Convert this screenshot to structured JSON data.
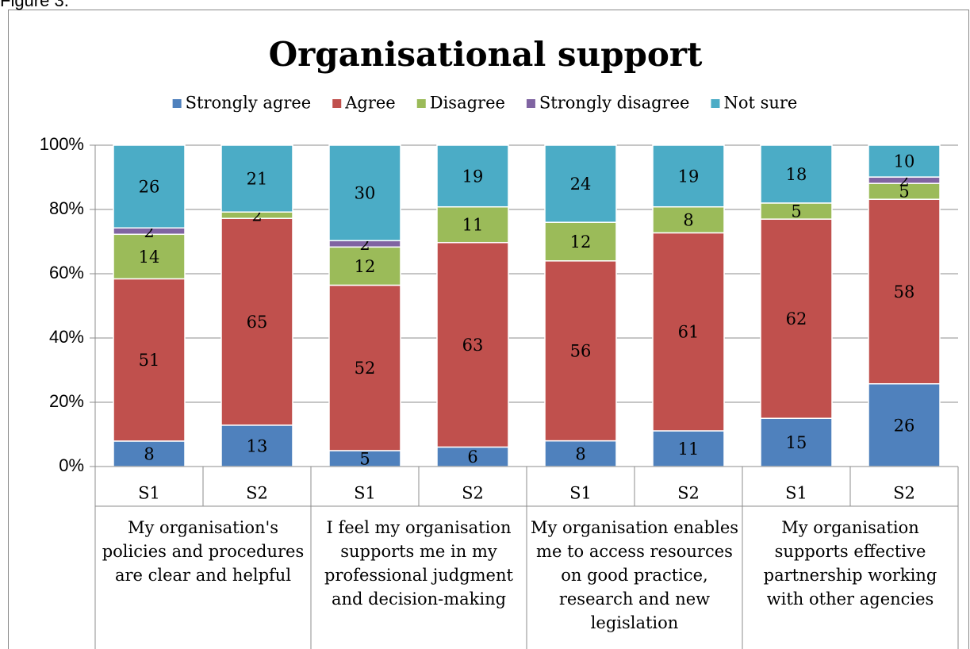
{
  "caption": "Figure 3.",
  "chart_data": {
    "type": "bar",
    "stack": "percent",
    "title": "Organisational support",
    "categories": [
      "S1",
      "S2",
      "S1",
      "S2",
      "S1",
      "S2",
      "S1",
      "S2"
    ],
    "groups": [
      "My organisation's policies and procedures are clear and helpful",
      "I feel my organisation supports me in my professional judgment and decision-making",
      "My organisation enables me to access resources on good practice, research and new legislation",
      "My organisation supports effective partnership working with other agencies"
    ],
    "series": [
      {
        "name": "Strongly agree",
        "color": "#4f81bd",
        "values": [
          8,
          13,
          5,
          6,
          8,
          11,
          15,
          26
        ]
      },
      {
        "name": "Agree",
        "color": "#c0504d",
        "values": [
          51,
          65,
          52,
          63,
          56,
          61,
          62,
          58
        ]
      },
      {
        "name": "Disagree",
        "color": "#9bbb59",
        "values": [
          14,
          2,
          12,
          11,
          12,
          8,
          5,
          5
        ]
      },
      {
        "name": "Strongly disagree",
        "color": "#8064a2",
        "values": [
          2,
          null,
          2,
          null,
          null,
          null,
          null,
          2
        ]
      },
      {
        "name": "Not sure",
        "color": "#4bacc6",
        "values": [
          26,
          21,
          30,
          19,
          24,
          19,
          18,
          10
        ]
      }
    ],
    "ylim": [
      0,
      100
    ],
    "yticks": [
      {
        "value": 0,
        "label": "0%"
      },
      {
        "value": 20,
        "label": "20%"
      },
      {
        "value": 40,
        "label": "40%"
      },
      {
        "value": 60,
        "label": "60%"
      },
      {
        "value": 80,
        "label": "80%"
      },
      {
        "value": 100,
        "label": "100%"
      }
    ],
    "grid": true,
    "legend": "top"
  }
}
